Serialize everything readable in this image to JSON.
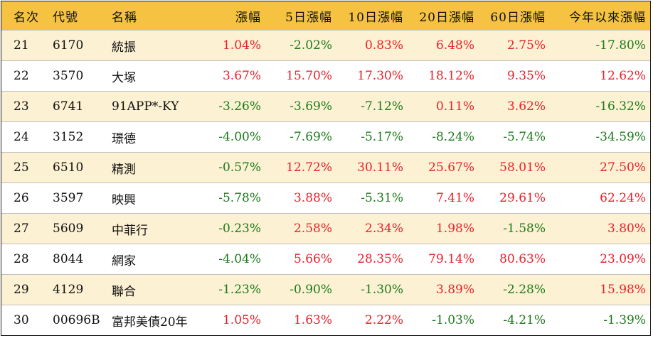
{
  "colors": {
    "header_bg": "#f5c242",
    "alt_row_bg": "#fdf1d3",
    "up": "#e8202a",
    "down": "#1a7a1a"
  },
  "headers": [
    "名次",
    "代號",
    "名稱",
    "漲幅",
    "5日漲幅",
    "10日漲幅",
    "20日漲幅",
    "60日漲幅",
    "今年以來漲幅"
  ],
  "rows": [
    {
      "rank": "21",
      "code": "6170",
      "name": "統振",
      "chg": "1.04%",
      "chg5": "-2.02%",
      "chg10": "0.83%",
      "chg20": "6.48%",
      "chg60": "2.75%",
      "ytd": "-17.80%"
    },
    {
      "rank": "22",
      "code": "3570",
      "name": "大塚",
      "chg": "3.67%",
      "chg5": "15.70%",
      "chg10": "17.30%",
      "chg20": "18.12%",
      "chg60": "9.35%",
      "ytd": "12.62%"
    },
    {
      "rank": "23",
      "code": "6741",
      "name": "91APP*-KY",
      "chg": "-3.26%",
      "chg5": "-3.69%",
      "chg10": "-7.12%",
      "chg20": "0.11%",
      "chg60": "3.62%",
      "ytd": "-16.32%"
    },
    {
      "rank": "24",
      "code": "3152",
      "name": "璟德",
      "chg": "-4.00%",
      "chg5": "-7.69%",
      "chg10": "-5.17%",
      "chg20": "-8.24%",
      "chg60": "-5.74%",
      "ytd": "-34.59%"
    },
    {
      "rank": "25",
      "code": "6510",
      "name": "精測",
      "chg": "-0.57%",
      "chg5": "12.72%",
      "chg10": "30.11%",
      "chg20": "25.67%",
      "chg60": "58.01%",
      "ytd": "27.50%"
    },
    {
      "rank": "26",
      "code": "3597",
      "name": "映興",
      "chg": "-5.78%",
      "chg5": "3.88%",
      "chg10": "-5.31%",
      "chg20": "7.41%",
      "chg60": "29.61%",
      "ytd": "62.24%"
    },
    {
      "rank": "27",
      "code": "5609",
      "name": "中菲行",
      "chg": "-0.23%",
      "chg5": "2.58%",
      "chg10": "2.34%",
      "chg20": "1.98%",
      "chg60": "-1.58%",
      "ytd": "3.80%"
    },
    {
      "rank": "28",
      "code": "8044",
      "name": "網家",
      "chg": "-4.04%",
      "chg5": "5.66%",
      "chg10": "28.35%",
      "chg20": "79.14%",
      "chg60": "80.63%",
      "ytd": "23.09%"
    },
    {
      "rank": "29",
      "code": "4129",
      "name": "聯合",
      "chg": "-1.23%",
      "chg5": "-0.90%",
      "chg10": "-1.30%",
      "chg20": "3.89%",
      "chg60": "-2.28%",
      "ytd": "15.98%"
    },
    {
      "rank": "30",
      "code": "00696B",
      "name": "富邦美債20年",
      "chg": "1.05%",
      "chg5": "1.63%",
      "chg10": "2.22%",
      "chg20": "-1.03%",
      "chg60": "-4.21%",
      "ytd": "-1.39%"
    }
  ]
}
